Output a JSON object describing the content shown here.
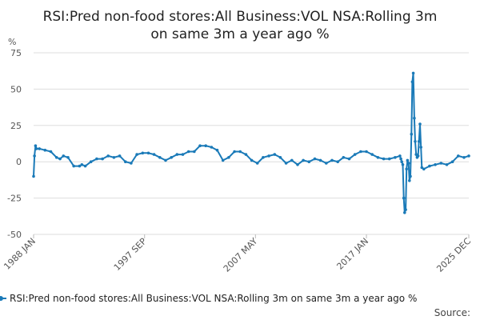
{
  "chart_data": {
    "type": "line",
    "title_lines": [
      "RSI:Pred non-food stores:All Business:VOL NSA:Rolling 3m",
      "on same 3m a year ago %"
    ],
    "ylabel": "%",
    "ylim": [
      -50,
      75
    ],
    "yticks": [
      75,
      50,
      25,
      0,
      -25,
      -50
    ],
    "x_tick_labels": [
      "1988 JAN",
      "1997 SEP",
      "2007 MAY",
      "2017 JAN",
      "2025 DEC"
    ],
    "x_tick_values": [
      1988.0,
      1997.67,
      2007.33,
      2017.0,
      2025.92
    ],
    "x_range": [
      1988.0,
      2025.92
    ],
    "grid": "horizontal",
    "legend_position": "bottom",
    "series": [
      {
        "name": "RSI:Pred non-food stores:All Business:VOL NSA:Rolling 3m on same 3m a year ago %",
        "color": "#1a7ab8",
        "x": [
          1988.0,
          1988.08,
          1988.17,
          1988.25,
          1988.5,
          1989.0,
          1989.5,
          1990.0,
          1990.3,
          1990.6,
          1991.0,
          1991.5,
          1992.0,
          1992.2,
          1992.5,
          1993.0,
          1993.5,
          1994.0,
          1994.5,
          1995.0,
          1995.5,
          1996.0,
          1996.5,
          1997.0,
          1997.5,
          1998.0,
          1998.5,
          1999.0,
          1999.5,
          2000.0,
          2000.5,
          2001.0,
          2001.5,
          2002.0,
          2002.5,
          2003.0,
          2003.5,
          2004.0,
          2004.5,
          2005.0,
          2005.5,
          2006.0,
          2006.5,
          2007.0,
          2007.5,
          2008.0,
          2008.5,
          2009.0,
          2009.5,
          2010.0,
          2010.5,
          2011.0,
          2011.5,
          2012.0,
          2012.5,
          2013.0,
          2013.5,
          2014.0,
          2014.5,
          2015.0,
          2015.5,
          2016.0,
          2016.5,
          2017.0,
          2017.5,
          2018.0,
          2018.5,
          2019.0,
          2019.5,
          2019.92,
          2020.0,
          2020.08,
          2020.17,
          2020.25,
          2020.33,
          2020.42,
          2020.5,
          2020.58,
          2020.67,
          2020.75,
          2020.83,
          2020.92,
          2021.0,
          2021.08,
          2021.17,
          2021.25,
          2021.33,
          2021.42,
          2021.5,
          2021.58,
          2021.67,
          2021.75,
          2021.83,
          2022.0,
          2022.5,
          2023.0,
          2023.5,
          2024.0,
          2024.5,
          2025.0,
          2025.5,
          2025.92
        ],
        "y": [
          -10,
          4,
          11,
          9,
          9,
          8,
          7,
          3,
          2,
          4,
          3,
          -3,
          -3,
          -2,
          -3,
          0,
          2,
          2,
          4,
          3,
          4,
          0,
          -1,
          5,
          6,
          6,
          5,
          3,
          1,
          3,
          5,
          5,
          7,
          7,
          11,
          11,
          10,
          8,
          1,
          3,
          7,
          7,
          5,
          1,
          -1,
          3,
          4,
          5,
          3,
          -1,
          1,
          -2,
          1,
          0,
          2,
          1,
          -1,
          1,
          0,
          3,
          2,
          5,
          7,
          7,
          5,
          3,
          2,
          2,
          3,
          4,
          2,
          0,
          -2,
          -25,
          -35,
          -33,
          -5,
          1,
          -1,
          -13,
          -10,
          19,
          55,
          61,
          30,
          14,
          5,
          3,
          4,
          14,
          26,
          10,
          -4,
          -5,
          -3,
          -2,
          -1,
          -2,
          0,
          4,
          3,
          4
        ]
      }
    ]
  },
  "legend": {
    "label": "RSI:Pred non-food stores:All Business:VOL NSA:Rolling 3m on same 3m a year ago %"
  },
  "source": {
    "label": "Source:"
  }
}
